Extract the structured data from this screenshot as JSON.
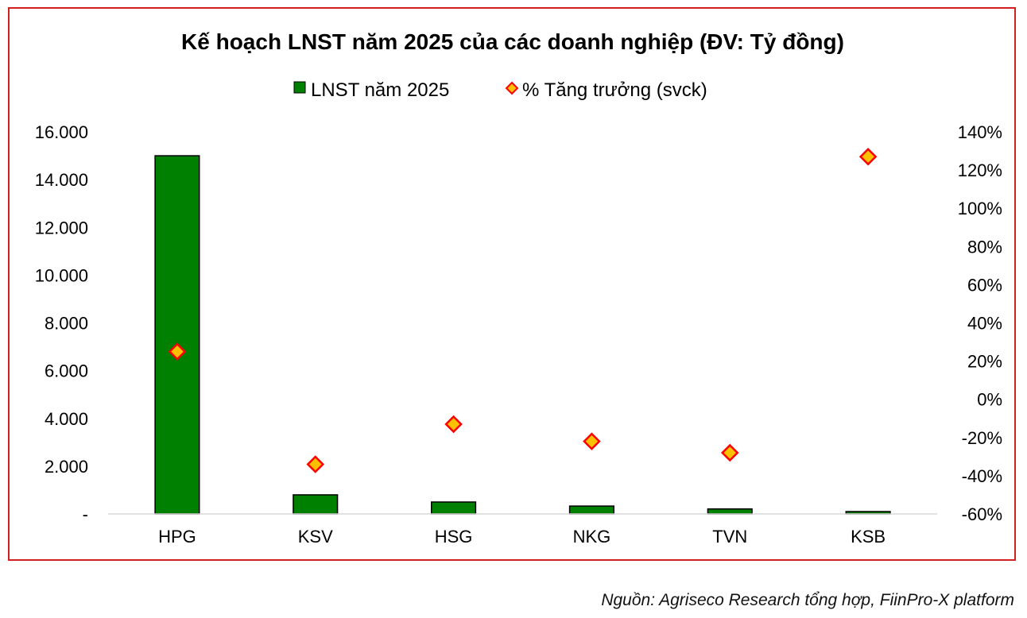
{
  "chart_data": {
    "type": "bar",
    "title": "Kế hoạch LNST năm 2025 của các doanh nghiệp (ĐV: Tỷ đồng)",
    "categories": [
      "HPG",
      "KSV",
      "HSG",
      "NKG",
      "TVN",
      "KSB"
    ],
    "series": [
      {
        "name": "LNST năm 2025",
        "type": "bar",
        "axis": "left",
        "color": "#008000",
        "values": [
          15000,
          800,
          500,
          330,
          210,
          100
        ]
      },
      {
        "name": "% Tăng trưởng (svck)",
        "type": "scatter",
        "axis": "right",
        "color": "#ffc000",
        "edge_color": "#ff0000",
        "values": [
          25,
          -34,
          -13,
          -22,
          -28,
          127
        ]
      }
    ],
    "y_left": {
      "ylim": [
        0,
        16000
      ],
      "ticks": [
        "-",
        "2.000",
        "4.000",
        "6.000",
        "8.000",
        "10.000",
        "12.000",
        "14.000",
        "16.000"
      ]
    },
    "y_right": {
      "ylim": [
        -60,
        140
      ],
      "ticks": [
        "-60%",
        "-40%",
        "-20%",
        "0%",
        "20%",
        "40%",
        "60%",
        "80%",
        "100%",
        "120%",
        "140%"
      ]
    },
    "legend": "top-center",
    "grid": false
  },
  "source": "Nguồn: Agriseco Research tổng hợp, FiinPro-X platform"
}
